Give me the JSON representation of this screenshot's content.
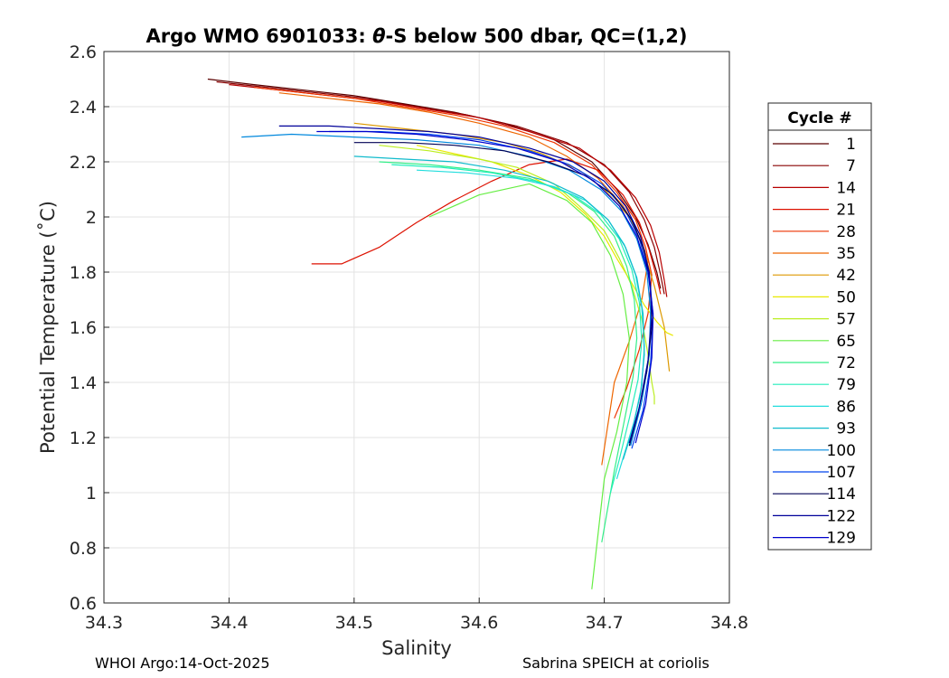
{
  "chart_data": {
    "type": "line",
    "title": "Argo WMO 6901033: θ-S below 500 dbar,  QC=(1,2)",
    "title_parts": {
      "prefix": "Argo WMO 6901033: ",
      "theta": "θ",
      "suffix": "-S below 500 dbar,  QC=(1,2)"
    },
    "xlabel": "Salinity",
    "ylabel": "Potential Temperature (˚C)",
    "xlim": [
      34.3,
      34.8
    ],
    "ylim": [
      0.6,
      2.6
    ],
    "xticks": [
      "34.3",
      "34.4",
      "34.5",
      "34.6",
      "34.7",
      "34.8"
    ],
    "yticks": [
      "0.6",
      "0.8",
      "1",
      "1.2",
      "1.4",
      "1.6",
      "1.8",
      "2",
      "2.2",
      "2.4",
      "2.6"
    ],
    "grid": true,
    "legend": {
      "title": "Cycle #",
      "placement": "right-outside",
      "entries": [
        {
          "label": "1",
          "color": "#5a0000"
        },
        {
          "label": "7",
          "color": "#880000"
        },
        {
          "label": "14",
          "color": "#b80000"
        },
        {
          "label": "21",
          "color": "#dd1100"
        },
        {
          "label": "28",
          "color": "#ee3300"
        },
        {
          "label": "35",
          "color": "#ee6600"
        },
        {
          "label": "42",
          "color": "#dd9900"
        },
        {
          "label": "50",
          "color": "#e8e800"
        },
        {
          "label": "57",
          "color": "#bbee22"
        },
        {
          "label": "65",
          "color": "#66ee44"
        },
        {
          "label": "72",
          "color": "#33ee88"
        },
        {
          "label": "79",
          "color": "#22eebb"
        },
        {
          "label": "86",
          "color": "#22dddd"
        },
        {
          "label": "93",
          "color": "#11bbcc"
        },
        {
          "label": "100",
          "color": "#0088dd"
        },
        {
          "label": "107",
          "color": "#0044ee"
        },
        {
          "label": "114",
          "color": "#000055"
        },
        {
          "label": "122",
          "color": "#000099"
        },
        {
          "label": "129",
          "color": "#0000cc"
        }
      ]
    },
    "series": [
      {
        "name": "1",
        "x": [
          34.383,
          34.42,
          34.46,
          34.5,
          34.54,
          34.58,
          34.62,
          34.66,
          34.69,
          34.71,
          34.725,
          34.735,
          34.742,
          34.745
        ],
        "y": [
          2.5,
          2.48,
          2.46,
          2.44,
          2.41,
          2.38,
          2.34,
          2.28,
          2.2,
          2.1,
          2.0,
          1.9,
          1.8,
          1.74
        ]
      },
      {
        "name": "7",
        "x": [
          34.39,
          34.43,
          34.47,
          34.51,
          34.55,
          34.59,
          34.63,
          34.67,
          34.7,
          34.72,
          34.732,
          34.74,
          34.745,
          34.748
        ],
        "y": [
          2.49,
          2.47,
          2.45,
          2.43,
          2.4,
          2.37,
          2.33,
          2.27,
          2.19,
          2.09,
          1.99,
          1.89,
          1.79,
          1.72
        ]
      },
      {
        "name": "14",
        "x": [
          34.4,
          34.44,
          34.48,
          34.52,
          34.56,
          34.6,
          34.64,
          34.68,
          34.705,
          34.725,
          34.737,
          34.744,
          34.748,
          34.75
        ],
        "y": [
          2.48,
          2.46,
          2.44,
          2.42,
          2.39,
          2.36,
          2.31,
          2.25,
          2.17,
          2.07,
          1.97,
          1.87,
          1.77,
          1.71
        ]
      },
      {
        "name": "21",
        "x": [
          34.466,
          34.49,
          34.52,
          34.55,
          34.58,
          34.61,
          34.64,
          34.67,
          34.695,
          34.715,
          34.728,
          34.736,
          34.742,
          34.745
        ],
        "y": [
          1.83,
          1.83,
          1.89,
          1.98,
          2.06,
          2.13,
          2.19,
          2.21,
          2.17,
          2.08,
          1.98,
          1.88,
          1.78,
          1.72
        ]
      },
      {
        "name": "28",
        "x": [
          34.42,
          34.46,
          34.5,
          34.54,
          34.58,
          34.62,
          34.66,
          34.69,
          34.71,
          34.725,
          34.733,
          34.738,
          34.735,
          34.728,
          34.718,
          34.708
        ],
        "y": [
          2.47,
          2.45,
          2.43,
          2.4,
          2.37,
          2.33,
          2.27,
          2.19,
          2.09,
          1.99,
          1.89,
          1.79,
          1.65,
          1.52,
          1.38,
          1.27
        ]
      },
      {
        "name": "35",
        "x": [
          34.44,
          34.48,
          34.52,
          34.56,
          34.6,
          34.64,
          34.67,
          34.695,
          34.715,
          34.728,
          34.735,
          34.73,
          34.72,
          34.708,
          34.698
        ],
        "y": [
          2.45,
          2.43,
          2.41,
          2.38,
          2.34,
          2.29,
          2.22,
          2.14,
          2.04,
          1.94,
          1.84,
          1.7,
          1.55,
          1.4,
          1.1
        ]
      },
      {
        "name": "42",
        "x": [
          34.5,
          34.54,
          34.58,
          34.62,
          34.65,
          34.68,
          34.7,
          34.72,
          34.73,
          34.74,
          34.748,
          34.752
        ],
        "y": [
          2.34,
          2.32,
          2.3,
          2.27,
          2.23,
          2.17,
          2.1,
          2.0,
          1.9,
          1.75,
          1.6,
          1.44
        ]
      },
      {
        "name": "50",
        "x": [
          34.55,
          34.58,
          34.61,
          34.64,
          34.665,
          34.685,
          34.7,
          34.71,
          34.722,
          34.732,
          34.742,
          34.75,
          34.755
        ],
        "y": [
          2.26,
          2.23,
          2.2,
          2.15,
          2.09,
          2.01,
          1.93,
          1.85,
          1.76,
          1.68,
          1.62,
          1.58,
          1.57
        ]
      },
      {
        "name": "57",
        "x": [
          34.52,
          34.56,
          34.6,
          34.63,
          34.66,
          34.68,
          34.7,
          34.712,
          34.722,
          34.73,
          34.735,
          34.738,
          34.74,
          34.74
        ],
        "y": [
          2.26,
          2.24,
          2.21,
          2.18,
          2.12,
          2.04,
          1.95,
          1.85,
          1.75,
          1.63,
          1.5,
          1.4,
          1.35,
          1.32
        ]
      },
      {
        "name": "65",
        "x": [
          34.56,
          34.6,
          34.64,
          34.67,
          34.69,
          34.705,
          34.715,
          34.72,
          34.718,
          34.71,
          34.7,
          34.69
        ],
        "y": [
          2.0,
          2.08,
          2.12,
          2.06,
          1.98,
          1.86,
          1.72,
          1.56,
          1.4,
          1.22,
          1.05,
          0.65
        ]
      },
      {
        "name": "72",
        "x": [
          34.52,
          34.56,
          34.6,
          34.64,
          34.67,
          34.692,
          34.708,
          34.718,
          34.724,
          34.726,
          34.723,
          34.716,
          34.708,
          34.698
        ],
        "y": [
          2.2,
          2.19,
          2.17,
          2.14,
          2.09,
          2.02,
          1.93,
          1.82,
          1.7,
          1.56,
          1.42,
          1.26,
          1.08,
          0.82
        ]
      },
      {
        "name": "79",
        "x": [
          34.53,
          34.57,
          34.61,
          34.645,
          34.675,
          34.697,
          34.712,
          34.722,
          34.728,
          34.73,
          34.727,
          34.72,
          34.712,
          34.705
        ],
        "y": [
          2.19,
          2.18,
          2.16,
          2.13,
          2.08,
          2.01,
          1.92,
          1.81,
          1.69,
          1.55,
          1.41,
          1.27,
          1.12,
          1.0
        ]
      },
      {
        "name": "86",
        "x": [
          34.55,
          34.59,
          34.63,
          34.66,
          34.685,
          34.703,
          34.716,
          34.725,
          34.73,
          34.732,
          34.73,
          34.724,
          34.716,
          34.71
        ],
        "y": [
          2.17,
          2.16,
          2.14,
          2.11,
          2.06,
          1.99,
          1.9,
          1.79,
          1.67,
          1.53,
          1.39,
          1.26,
          1.14,
          1.05
        ]
      },
      {
        "name": "93",
        "x": [
          34.5,
          34.54,
          34.58,
          34.62,
          34.655,
          34.683,
          34.703,
          34.717,
          34.726,
          34.731,
          34.732,
          34.729,
          34.722,
          34.715
        ],
        "y": [
          2.22,
          2.21,
          2.2,
          2.17,
          2.13,
          2.07,
          1.99,
          1.89,
          1.78,
          1.65,
          1.5,
          1.36,
          1.22,
          1.12
        ]
      },
      {
        "name": "100",
        "x": [
          34.41,
          34.45,
          34.5,
          34.55,
          34.6,
          34.64,
          34.672,
          34.697,
          34.714,
          34.726,
          34.734,
          34.737,
          34.736,
          34.73,
          34.721
        ],
        "y": [
          2.29,
          2.3,
          2.29,
          2.28,
          2.26,
          2.22,
          2.17,
          2.1,
          2.02,
          1.92,
          1.8,
          1.66,
          1.5,
          1.33,
          1.17
        ]
      },
      {
        "name": "107",
        "x": [
          34.48,
          34.52,
          34.56,
          34.6,
          34.64,
          34.672,
          34.698,
          34.716,
          34.728,
          34.736,
          34.739,
          34.737,
          34.731,
          34.722
        ],
        "y": [
          2.31,
          2.31,
          2.3,
          2.28,
          2.24,
          2.19,
          2.12,
          2.03,
          1.92,
          1.79,
          1.64,
          1.47,
          1.3,
          1.16
        ]
      },
      {
        "name": "114",
        "x": [
          34.5,
          34.54,
          34.58,
          34.62,
          34.655,
          34.685,
          34.707,
          34.722,
          34.732,
          34.737,
          34.738,
          34.734,
          34.727,
          34.72
        ],
        "y": [
          2.27,
          2.27,
          2.26,
          2.24,
          2.2,
          2.15,
          2.08,
          1.99,
          1.88,
          1.75,
          1.6,
          1.44,
          1.29,
          1.17
        ]
      },
      {
        "name": "122",
        "x": [
          34.44,
          34.48,
          34.52,
          34.56,
          34.6,
          34.64,
          34.675,
          34.7,
          34.717,
          34.729,
          34.736,
          34.738,
          34.735,
          34.728,
          34.72
        ],
        "y": [
          2.33,
          2.33,
          2.32,
          2.31,
          2.29,
          2.25,
          2.2,
          2.13,
          2.04,
          1.93,
          1.8,
          1.65,
          1.48,
          1.31,
          1.18
        ]
      },
      {
        "name": "129",
        "x": [
          34.47,
          34.51,
          34.55,
          34.59,
          34.63,
          34.665,
          34.692,
          34.712,
          34.726,
          34.735,
          34.739,
          34.738,
          34.733,
          34.725
        ],
        "y": [
          2.31,
          2.31,
          2.3,
          2.28,
          2.25,
          2.2,
          2.13,
          2.04,
          1.93,
          1.8,
          1.65,
          1.49,
          1.32,
          1.18
        ]
      }
    ]
  },
  "footer": {
    "left": "WHOI Argo:14-Oct-2025",
    "right": "Sabrina SPEICH at coriolis"
  }
}
